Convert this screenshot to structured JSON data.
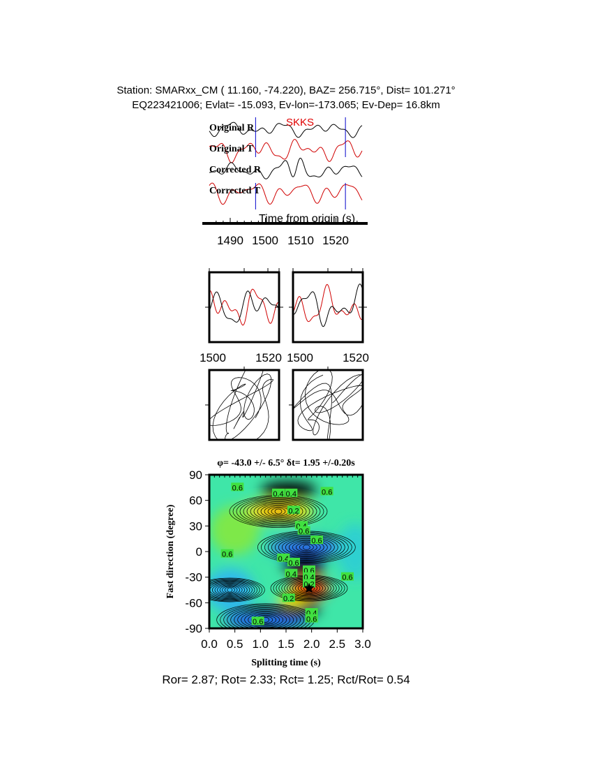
{
  "header": {
    "line1": "Station: SMARxx_CM (  11.160,  -74.220), BAZ=  256.715°, Dist=  101.271°",
    "line2": "EQ223421006; Evlat= -15.093, Ev-lon=-173.065; Ev-Dep= 16.8km"
  },
  "colors": {
    "radial": "#000000",
    "transverse": "#d00000",
    "window": "#0000cc",
    "phase": "#e00000"
  },
  "chart_data": [
    {
      "type": "line",
      "phase_label": "SKKS",
      "trace_labels": [
        "Original R",
        "Original T",
        "Corrected R",
        "Corrected T"
      ],
      "xlabel": "Time from origin (s)",
      "x_ticks": [
        "1490",
        "1500",
        "1510",
        "1520"
      ],
      "xlim": [
        1484,
        1528
      ],
      "window": [
        1497.2,
        1522.7
      ]
    },
    {
      "type": "line",
      "panels": [
        {
          "x_ticks": [
            "1500",
            "1520"
          ]
        },
        {
          "x_ticks": [
            "1500",
            "1520"
          ]
        }
      ]
    },
    {
      "type": "scatter",
      "description": "particle motion",
      "panels": 2
    },
    {
      "type": "heatmap",
      "title": "φ= -43.0 +/- 6.5° δt= 1.95 +/-0.20s",
      "xlabel": "Splitting time (s)",
      "ylabel": "Fast direction (degree)",
      "xlim": [
        0,
        3
      ],
      "ylim": [
        -90,
        90
      ],
      "x_ticks": [
        "0.0",
        "0.5",
        "1.0",
        "1.5",
        "2.0",
        "2.5",
        "3.0"
      ],
      "y_ticks": [
        "90",
        "60",
        "30",
        "0",
        "-30",
        "-60",
        "-90"
      ],
      "best": {
        "phi": -43.0,
        "phi_err": 6.5,
        "dt": 1.95,
        "dt_err": 0.2
      },
      "contour_labels": [
        "0.6",
        "0.4",
        "0.4",
        "0.6",
        "0.2",
        "0.4",
        "0.6",
        "0.6",
        "0.4",
        "0.6",
        "0.6",
        "0.6",
        "0.4",
        "0.4",
        "0.2",
        "0.6",
        "0.2",
        "0.6",
        "0.4",
        "0.6"
      ]
    }
  ],
  "footer": "Ror= 2.87; Rot= 2.33; Rct= 1.25; Rct/Rot= 0.54"
}
